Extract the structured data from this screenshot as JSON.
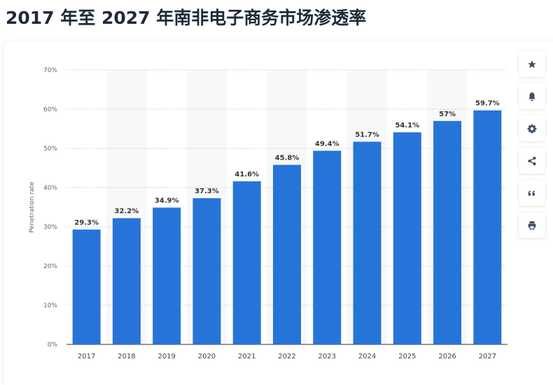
{
  "title": "2017 年至 2027 年南非电子商务市场渗透率",
  "toolbar": {
    "icons": [
      "star-icon",
      "bell-icon",
      "gear-icon",
      "share-icon",
      "quote-icon",
      "print-icon"
    ]
  },
  "chart_data": {
    "type": "bar",
    "categories": [
      "2017",
      "2018",
      "2019",
      "2020",
      "2021",
      "2022",
      "2023",
      "2024",
      "2025",
      "2026",
      "2027"
    ],
    "values": [
      29.3,
      32.2,
      34.9,
      37.3,
      41.6,
      45.8,
      49.4,
      51.7,
      54.1,
      57,
      59.7
    ],
    "labels": [
      "29.3%",
      "32.2%",
      "34.9%",
      "37.3%",
      "41.6%",
      "45.8%",
      "49.4%",
      "51.7%",
      "54.1%",
      "57%",
      "59.7%"
    ],
    "ylabel": "Penetration rate",
    "ylim": [
      0,
      70
    ],
    "yticks": [
      "0%",
      "10%",
      "20%",
      "30%",
      "40%",
      "50%",
      "60%",
      "70%"
    ],
    "grid": true,
    "bar_color": "#2774d9"
  }
}
